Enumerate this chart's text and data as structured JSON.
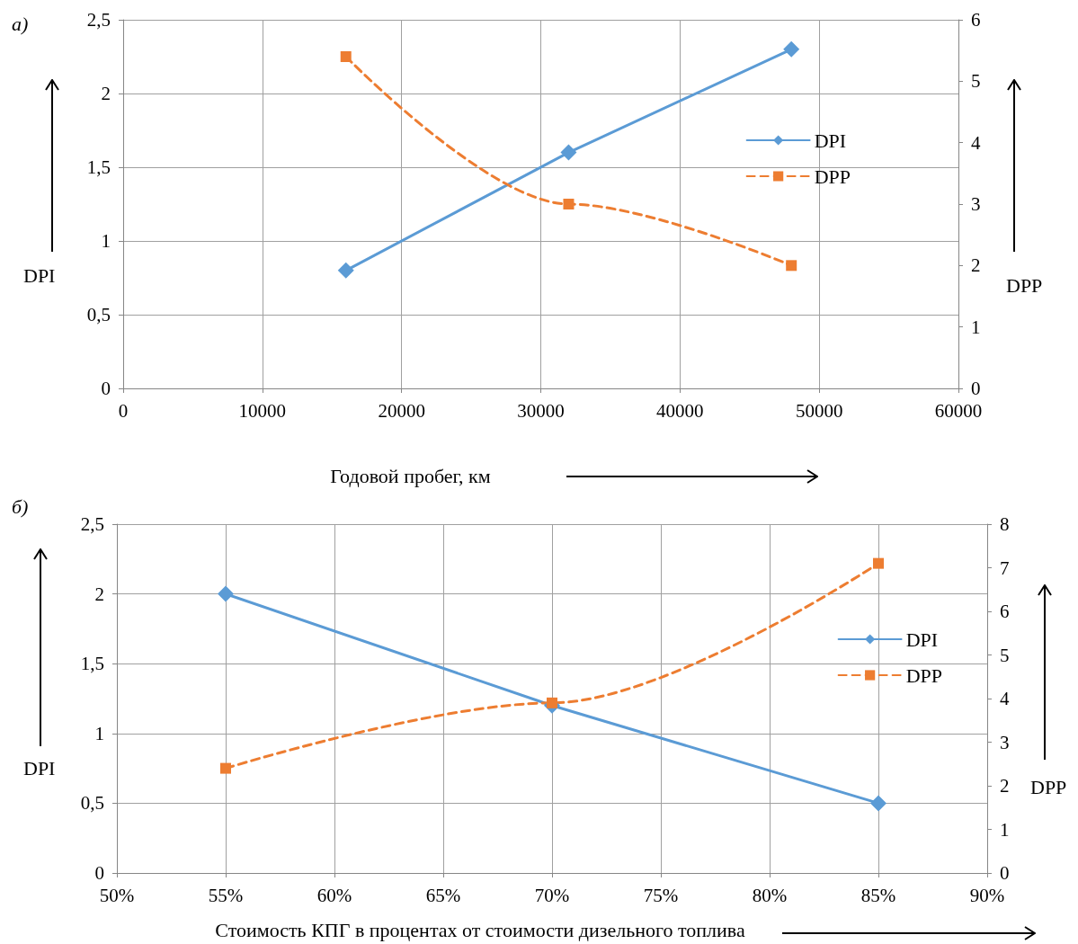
{
  "chart_data": [
    {
      "type": "line",
      "title": "а)",
      "xlabel": "Годовой пробег, км",
      "ylabel": "DPI",
      "y2label": "DPP",
      "x": [
        16000,
        32000,
        48000
      ],
      "series": [
        {
          "name": "DPI",
          "color": "#5b9bd5",
          "values": [
            0.8,
            1.6,
            2.3
          ],
          "marker": "diamond",
          "line_style": "solid"
        },
        {
          "name": "DPP",
          "color": "#ed7d31",
          "values": [
            5.4,
            3.0,
            2.0
          ],
          "marker": "square",
          "line_style": "dashed",
          "axis": "y2"
        }
      ],
      "xlim": [
        0,
        60000
      ],
      "xticks": [
        0,
        10000,
        20000,
        30000,
        40000,
        50000,
        60000
      ],
      "ylim": [
        0,
        2.5
      ],
      "yticks": [
        0,
        {
          "value": 0.5,
          "label": "0,5"
        },
        1,
        {
          "value": 1.5,
          "label": "1,5"
        },
        2,
        {
          "value": 2.5,
          "label": "2,5"
        }
      ],
      "y2lim": [
        0,
        6
      ],
      "y2ticks": [
        0,
        1,
        2,
        3,
        4,
        5,
        6
      ],
      "grid": true,
      "legend": "top right"
    },
    {
      "type": "line",
      "title": "б)",
      "xlabel": "Стоимость КПГ в процентах от стоимости дизельного топлива",
      "ylabel": "DPI",
      "y2label": "DPP",
      "x": [
        55,
        70,
        85
      ],
      "series": [
        {
          "name": "DPI",
          "color": "#5b9bd5",
          "values": [
            2.0,
            1.2,
            0.5
          ],
          "marker": "diamond",
          "line_style": "solid"
        },
        {
          "name": "DPP",
          "color": "#ed7d31",
          "values": [
            2.4,
            3.9,
            7.1
          ],
          "marker": "square",
          "line_style": "dashed",
          "axis": "y2"
        }
      ],
      "xlim": [
        50,
        90
      ],
      "xticks": [
        {
          "value": 50,
          "label": "50%"
        },
        {
          "value": 55,
          "label": "55%"
        },
        {
          "value": 60,
          "label": "60%"
        },
        {
          "value": 65,
          "label": "65%"
        },
        {
          "value": 70,
          "label": "70%"
        },
        {
          "value": 75,
          "label": "75%"
        },
        {
          "value": 80,
          "label": "80%"
        },
        {
          "value": 85,
          "label": "85%"
        },
        {
          "value": 90,
          "label": "90%"
        }
      ],
      "ylim": [
        0,
        2.5
      ],
      "yticks": [
        0,
        {
          "value": 0.5,
          "label": "0,5"
        },
        1,
        {
          "value": 1.5,
          "label": "1,5"
        },
        2,
        {
          "value": 2.5,
          "label": "2,5"
        }
      ],
      "y2lim": [
        0,
        8
      ],
      "y2ticks": [
        0,
        1,
        2,
        3,
        4,
        5,
        6,
        7,
        8
      ],
      "grid": true,
      "legend": "right"
    }
  ]
}
